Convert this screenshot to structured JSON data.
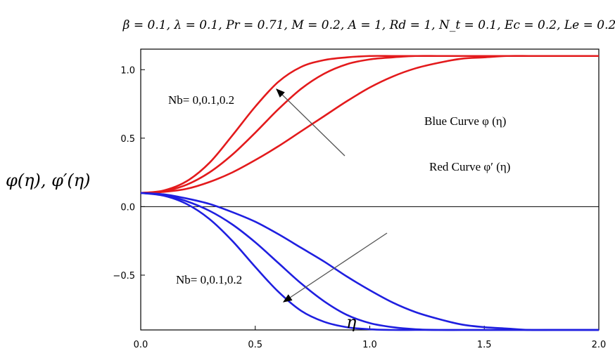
{
  "chart_data": {
    "type": "line",
    "title": "β = 0.1, λ = 0.1, Pr = 0.71, M = 0.2, A = 1, Rd = 1, N_t = 0.1, Ec = 0.2, Le = 0.2",
    "xlabel": "η",
    "ylabel": "φ(η), φ′(η)",
    "xlim": [
      0,
      2
    ],
    "ylim": [
      -0.9,
      1.15
    ],
    "xticks": [
      "0.0",
      "0.5",
      "1.0",
      "1.5",
      "2.0"
    ],
    "yticks": [
      "-0.5",
      "0.0",
      "0.5",
      "1.0"
    ],
    "grid": false,
    "series": [
      {
        "color": "#e31a1c",
        "x": [
          0,
          0.1,
          0.2,
          0.3,
          0.4,
          0.5,
          0.6,
          0.7,
          0.8,
          0.9,
          1.0,
          1.1,
          1.2,
          1.3,
          1.4,
          1.5,
          1.6,
          1.7,
          1.8,
          1.9,
          2.0
        ],
        "y": [
          0.1,
          0.118,
          0.185,
          0.32,
          0.52,
          0.73,
          0.91,
          1.02,
          1.07,
          1.09,
          1.1,
          1.1,
          1.1,
          1.1,
          1.1,
          1.1,
          1.1,
          1.1,
          1.1,
          1.1,
          1.1
        ]
      },
      {
        "color": "#e31a1c",
        "x": [
          0,
          0.1,
          0.2,
          0.3,
          0.4,
          0.5,
          0.6,
          0.7,
          0.8,
          0.9,
          1.0,
          1.1,
          1.2,
          1.3,
          1.4,
          1.5,
          1.6,
          1.7,
          1.8,
          1.9,
          2.0
        ],
        "y": [
          0.1,
          0.113,
          0.16,
          0.25,
          0.38,
          0.54,
          0.71,
          0.86,
          0.97,
          1.04,
          1.075,
          1.09,
          1.1,
          1.1,
          1.1,
          1.1,
          1.1,
          1.1,
          1.1,
          1.1,
          1.1
        ]
      },
      {
        "color": "#e31a1c",
        "x": [
          0,
          0.1,
          0.2,
          0.3,
          0.4,
          0.5,
          0.6,
          0.7,
          0.8,
          0.9,
          1.0,
          1.1,
          1.2,
          1.3,
          1.4,
          1.5,
          1.6,
          1.7,
          1.8,
          1.9,
          2.0
        ],
        "y": [
          0.1,
          0.108,
          0.13,
          0.18,
          0.25,
          0.34,
          0.44,
          0.55,
          0.66,
          0.77,
          0.87,
          0.95,
          1.01,
          1.05,
          1.08,
          1.09,
          1.1,
          1.1,
          1.1,
          1.1,
          1.1
        ]
      },
      {
        "color": "#1f1fe0",
        "x": [
          0,
          0.1,
          0.2,
          0.3,
          0.4,
          0.5,
          0.6,
          0.7,
          0.8,
          0.9,
          1.0,
          1.1,
          1.2,
          1.3,
          1.4,
          1.5,
          1.6,
          1.7,
          1.8,
          1.9,
          2.0
        ],
        "y": [
          0.1,
          0.08,
          0.02,
          -0.09,
          -0.25,
          -0.44,
          -0.62,
          -0.76,
          -0.84,
          -0.88,
          -0.895,
          -0.9,
          -0.9,
          -0.9,
          -0.9,
          -0.9,
          -0.9,
          -0.9,
          -0.9,
          -0.9,
          -0.9
        ]
      },
      {
        "color": "#1f1fe0",
        "x": [
          0,
          0.1,
          0.2,
          0.3,
          0.4,
          0.5,
          0.6,
          0.7,
          0.8,
          0.9,
          1.0,
          1.1,
          1.2,
          1.3,
          1.4,
          1.5,
          1.6,
          1.7,
          1.8,
          1.9,
          2.0
        ],
        "y": [
          0.1,
          0.085,
          0.04,
          -0.03,
          -0.13,
          -0.26,
          -0.41,
          -0.56,
          -0.69,
          -0.79,
          -0.85,
          -0.88,
          -0.895,
          -0.9,
          -0.9,
          -0.9,
          -0.9,
          -0.9,
          -0.9,
          -0.9,
          -0.9
        ]
      },
      {
        "color": "#1f1fe0",
        "x": [
          0,
          0.1,
          0.2,
          0.3,
          0.4,
          0.5,
          0.6,
          0.7,
          0.8,
          0.9,
          1.0,
          1.1,
          1.2,
          1.3,
          1.4,
          1.5,
          1.6,
          1.7,
          1.8,
          1.9,
          2.0
        ],
        "y": [
          0.1,
          0.09,
          0.06,
          0.02,
          -0.04,
          -0.11,
          -0.2,
          -0.3,
          -0.4,
          -0.51,
          -0.61,
          -0.7,
          -0.77,
          -0.82,
          -0.86,
          -0.88,
          -0.89,
          -0.9,
          -0.9,
          -0.9,
          -0.9
        ]
      }
    ],
    "annotations": [
      {
        "text": "Nb= 0,0.1,0.2"
      },
      {
        "text": "Nb= 0,0.1,0.2"
      },
      {
        "text": "Blue  Curve φ (η)"
      },
      {
        "text": "Red Curve  φ′ (η)"
      }
    ]
  }
}
